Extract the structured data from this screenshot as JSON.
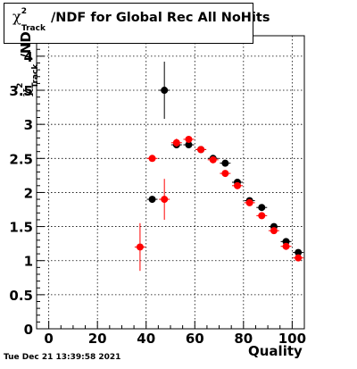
{
  "header": {
    "title_symbol": "χ",
    "title_sup": "2",
    "title_sub": "Track",
    "title_rest": "/NDF for Global Rec All NoHits"
  },
  "footer": {
    "timestamp": "Tue Dec 21 13:39:58 2021"
  },
  "chart_data": {
    "type": "scatter",
    "title": "χ2Track/NDF for Global Rec All NoHits",
    "xlabel": "Quality",
    "ylabel_symbol": "χ",
    "ylabel_sup": "2",
    "ylabel_sub": "Track",
    "ylabel_rest": "/ND",
    "xlim": [
      -5,
      105
    ],
    "ylim": [
      0,
      4.3
    ],
    "grid": true,
    "x_ticks": [
      0,
      20,
      40,
      60,
      80,
      100
    ],
    "x_tick_labels": [
      "0",
      "20",
      "40",
      "60",
      "80",
      "100"
    ],
    "y_ticks": [
      0,
      0.5,
      1,
      1.5,
      2,
      2.5,
      3,
      3.5,
      4
    ],
    "y_tick_labels": [
      "0",
      "0.5",
      "1",
      "1.5",
      "2",
      "2.5",
      "3",
      "3.5",
      "4"
    ],
    "series": [
      {
        "color": "#000000",
        "x": [
          42.5,
          47.5,
          52.5,
          57.5,
          62.5,
          67.5,
          72.5,
          77.5,
          82.5,
          87.5,
          92.5,
          97.5,
          102.5
        ],
        "y": [
          1.9,
          3.5,
          2.7,
          2.7,
          2.63,
          2.5,
          2.43,
          2.15,
          1.88,
          1.78,
          1.5,
          1.28,
          1.12
        ],
        "yerr": [
          0.03,
          0.42,
          0.05,
          0.05,
          0.04,
          0.04,
          0.04,
          0.03,
          0.03,
          0.03,
          0.03,
          0.03,
          0.03
        ]
      },
      {
        "color": "#ff0000",
        "x": [
          37.5,
          42.5,
          47.5,
          52.5,
          57.5,
          62.5,
          67.5,
          72.5,
          77.5,
          82.5,
          87.5,
          92.5,
          97.5,
          102.5
        ],
        "y": [
          1.2,
          2.5,
          1.9,
          2.73,
          2.78,
          2.63,
          2.48,
          2.28,
          2.1,
          1.85,
          1.66,
          1.44,
          1.21,
          1.04
        ],
        "yerr": [
          0.35,
          0.03,
          0.3,
          0.06,
          0.05,
          0.04,
          0.04,
          0.04,
          0.03,
          0.03,
          0.03,
          0.03,
          0.03,
          0.03
        ]
      }
    ]
  }
}
